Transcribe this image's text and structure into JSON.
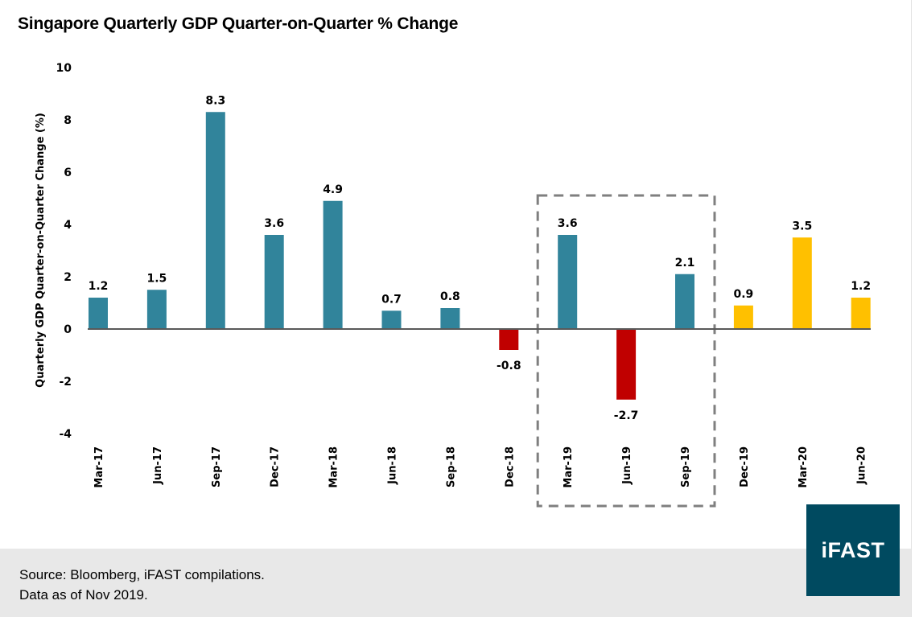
{
  "title": "Singapore Quarterly GDP Quarter-on-Quarter % Change",
  "footer": {
    "source_line": "Source: Bloomberg, iFAST compilations.",
    "date_line": "Data as of Nov 2019."
  },
  "logo": {
    "text": "iFAST",
    "background": "#004a60"
  },
  "colors": {
    "actual_positive": "#31849b",
    "actual_negative": "#c00000",
    "forecast": "#ffc000",
    "axis": "#595959",
    "highlight_box": "#7f7f7f"
  },
  "chart_data": {
    "type": "bar",
    "title": "Singapore Quarterly GDP Quarter-on-Quarter % Change",
    "xlabel": "",
    "ylabel": "Quarterly GDP Quarter-on-Quarter Change (%)",
    "ylim": [
      -4,
      10
    ],
    "yticks": [
      10,
      8,
      6,
      4,
      2,
      0,
      -2,
      -4
    ],
    "grid": false,
    "legend": "none",
    "categories": [
      "Mar-17",
      "Jun-17",
      "Sep-17",
      "Dec-17",
      "Mar-18",
      "Jun-18",
      "Sep-18",
      "Dec-18",
      "Mar-19",
      "Jun-19",
      "Sep-19",
      "Dec-19",
      "Mar-20",
      "Jun-20"
    ],
    "values": [
      1.2,
      1.5,
      8.3,
      3.6,
      4.9,
      0.7,
      0.8,
      -0.8,
      3.6,
      -2.7,
      2.1,
      0.9,
      3.5,
      1.2
    ],
    "data_labels": [
      "1.2",
      "1.5",
      "8.3",
      "3.6",
      "4.9",
      "0.7",
      "0.8",
      "-0.8",
      "3.6",
      "-2.7",
      "2.1",
      "0.9",
      "3.5",
      "1.2"
    ],
    "bar_kind": [
      "actual",
      "actual",
      "actual",
      "actual",
      "actual",
      "actual",
      "actual",
      "actual",
      "actual",
      "actual",
      "actual",
      "forecast",
      "forecast",
      "forecast"
    ],
    "annotations": [
      {
        "type": "dashed-box",
        "from_category": "Mar-19",
        "to_category": "Sep-19"
      }
    ]
  }
}
